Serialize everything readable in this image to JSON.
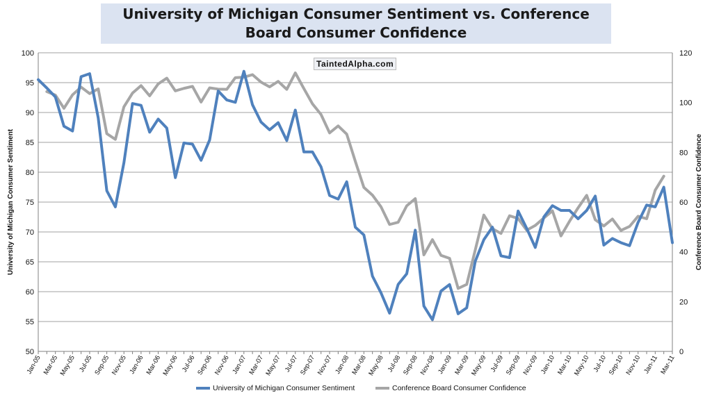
{
  "page_title": "University of Michigan Consumer Sentiment vs. Conference Board Consumer Confidence",
  "watermark": "TaintedAlpha.com",
  "chart_data": {
    "type": "line",
    "title": "University of Michigan Consumer Sentiment vs. Conference Board Consumer Confidence",
    "x": [
      "Jan-05",
      "Feb-05",
      "Mar-05",
      "Apr-05",
      "May-05",
      "Jun-05",
      "Jul-05",
      "Aug-05",
      "Sep-05",
      "Oct-05",
      "Nov-05",
      "Dec-05",
      "Jan-06",
      "Feb-06",
      "Mar-06",
      "Apr-06",
      "May-06",
      "Jun-06",
      "Jul-06",
      "Aug-06",
      "Sep-06",
      "Oct-06",
      "Nov-06",
      "Dec-06",
      "Jan-07",
      "Feb-07",
      "Mar-07",
      "Apr-07",
      "May-07",
      "Jun-07",
      "Jul-07",
      "Aug-07",
      "Sep-07",
      "Oct-07",
      "Nov-07",
      "Dec-07",
      "Jan-08",
      "Feb-08",
      "Mar-08",
      "Apr-08",
      "May-08",
      "Jun-08",
      "Jul-08",
      "Aug-08",
      "Sep-08",
      "Oct-08",
      "Nov-08",
      "Dec-08",
      "Jan-09",
      "Feb-09",
      "Mar-09",
      "Apr-09",
      "May-09",
      "Jun-09",
      "Jul-09",
      "Aug-09",
      "Sep-09",
      "Oct-09",
      "Nov-09",
      "Dec-09",
      "Jan-10",
      "Feb-10",
      "Mar-10",
      "Apr-10",
      "May-10",
      "Jun-10",
      "Jul-10",
      "Aug-10",
      "Sep-10",
      "Oct-10",
      "Nov-10",
      "Dec-10",
      "Jan-11",
      "Feb-11",
      "Mar-11"
    ],
    "xtick_labels": [
      "Jan-05",
      "Mar-05",
      "May-05",
      "Jul-05",
      "Sep-05",
      "Nov-05",
      "Jan-06",
      "Mar-06",
      "May-06",
      "Jul-06",
      "Sep-06",
      "Nov-06",
      "Jan-07",
      "Mar-07",
      "May-07",
      "Jul-07",
      "Sep-07",
      "Nov-07",
      "Jan-08",
      "Mar-08",
      "May-08",
      "Jul-08",
      "Sep-08",
      "Nov-08",
      "Jan-09",
      "Mar-09",
      "May-09",
      "Jul-09",
      "Sep-09",
      "Nov-09",
      "Jan-10",
      "Mar-10",
      "May-10",
      "Jul-10",
      "Sep-10",
      "Nov-10",
      "Jan-11",
      "Mar-11"
    ],
    "ylabel": "University of Michigan Consumer Sentiment",
    "y2label": "Conference Board Consumer Confidence",
    "ylim": [
      50,
      100
    ],
    "y2lim": [
      0,
      120
    ],
    "yticks": [
      50,
      55,
      60,
      65,
      70,
      75,
      80,
      85,
      90,
      95,
      100
    ],
    "y2ticks": [
      0,
      20,
      40,
      60,
      80,
      100,
      120
    ],
    "grid": true,
    "legend_position": "bottom",
    "series": [
      {
        "name": "University of Michigan Consumer Sentiment",
        "axis": "left",
        "color": "#4f81bd",
        "values": [
          95.5,
          94.1,
          92.6,
          87.7,
          86.9,
          96.0,
          96.5,
          89.1,
          76.9,
          74.2,
          81.6,
          91.5,
          91.2,
          86.7,
          88.9,
          87.4,
          79.1,
          84.9,
          84.7,
          82.0,
          85.4,
          93.6,
          92.1,
          91.7,
          96.9,
          91.3,
          88.4,
          87.1,
          88.3,
          85.3,
          90.4,
          83.4,
          83.4,
          80.9,
          76.1,
          75.5,
          78.4,
          70.8,
          69.5,
          62.6,
          59.8,
          56.4,
          61.2,
          63.0,
          70.3,
          57.6,
          55.3,
          60.1,
          61.2,
          56.3,
          57.3,
          65.1,
          68.7,
          70.8,
          66.0,
          65.7,
          73.5,
          70.6,
          67.4,
          72.5,
          74.4,
          73.6,
          73.6,
          72.2,
          73.6,
          76.0,
          67.8,
          68.9,
          68.2,
          67.7,
          71.6,
          74.5,
          74.2,
          77.5,
          68.2
        ]
      },
      {
        "name": "Conference Board Consumer Confidence",
        "axis": "right",
        "color": "#a6a6a6",
        "values": [
          null,
          104.4,
          103.0,
          97.7,
          103.1,
          106.2,
          103.6,
          105.5,
          87.5,
          85.2,
          98.3,
          103.8,
          106.8,
          102.7,
          107.5,
          109.8,
          104.7,
          105.7,
          106.5,
          100.2,
          105.9,
          105.4,
          105.3,
          110.0,
          110.2,
          111.2,
          108.2,
          106.3,
          108.5,
          105.3,
          111.9,
          105.6,
          99.5,
          95.2,
          87.8,
          90.6,
          87.3,
          76.4,
          65.9,
          62.8,
          58.1,
          51.0,
          51.9,
          58.5,
          61.4,
          38.8,
          44.9,
          38.6,
          37.4,
          25.3,
          26.9,
          40.8,
          54.8,
          49.3,
          47.4,
          54.5,
          53.4,
          48.7,
          50.6,
          53.6,
          56.5,
          46.4,
          52.3,
          57.7,
          62.7,
          52.9,
          50.4,
          53.2,
          48.6,
          50.2,
          54.3,
          53.3,
          64.8,
          70.4,
          null
        ]
      }
    ]
  }
}
